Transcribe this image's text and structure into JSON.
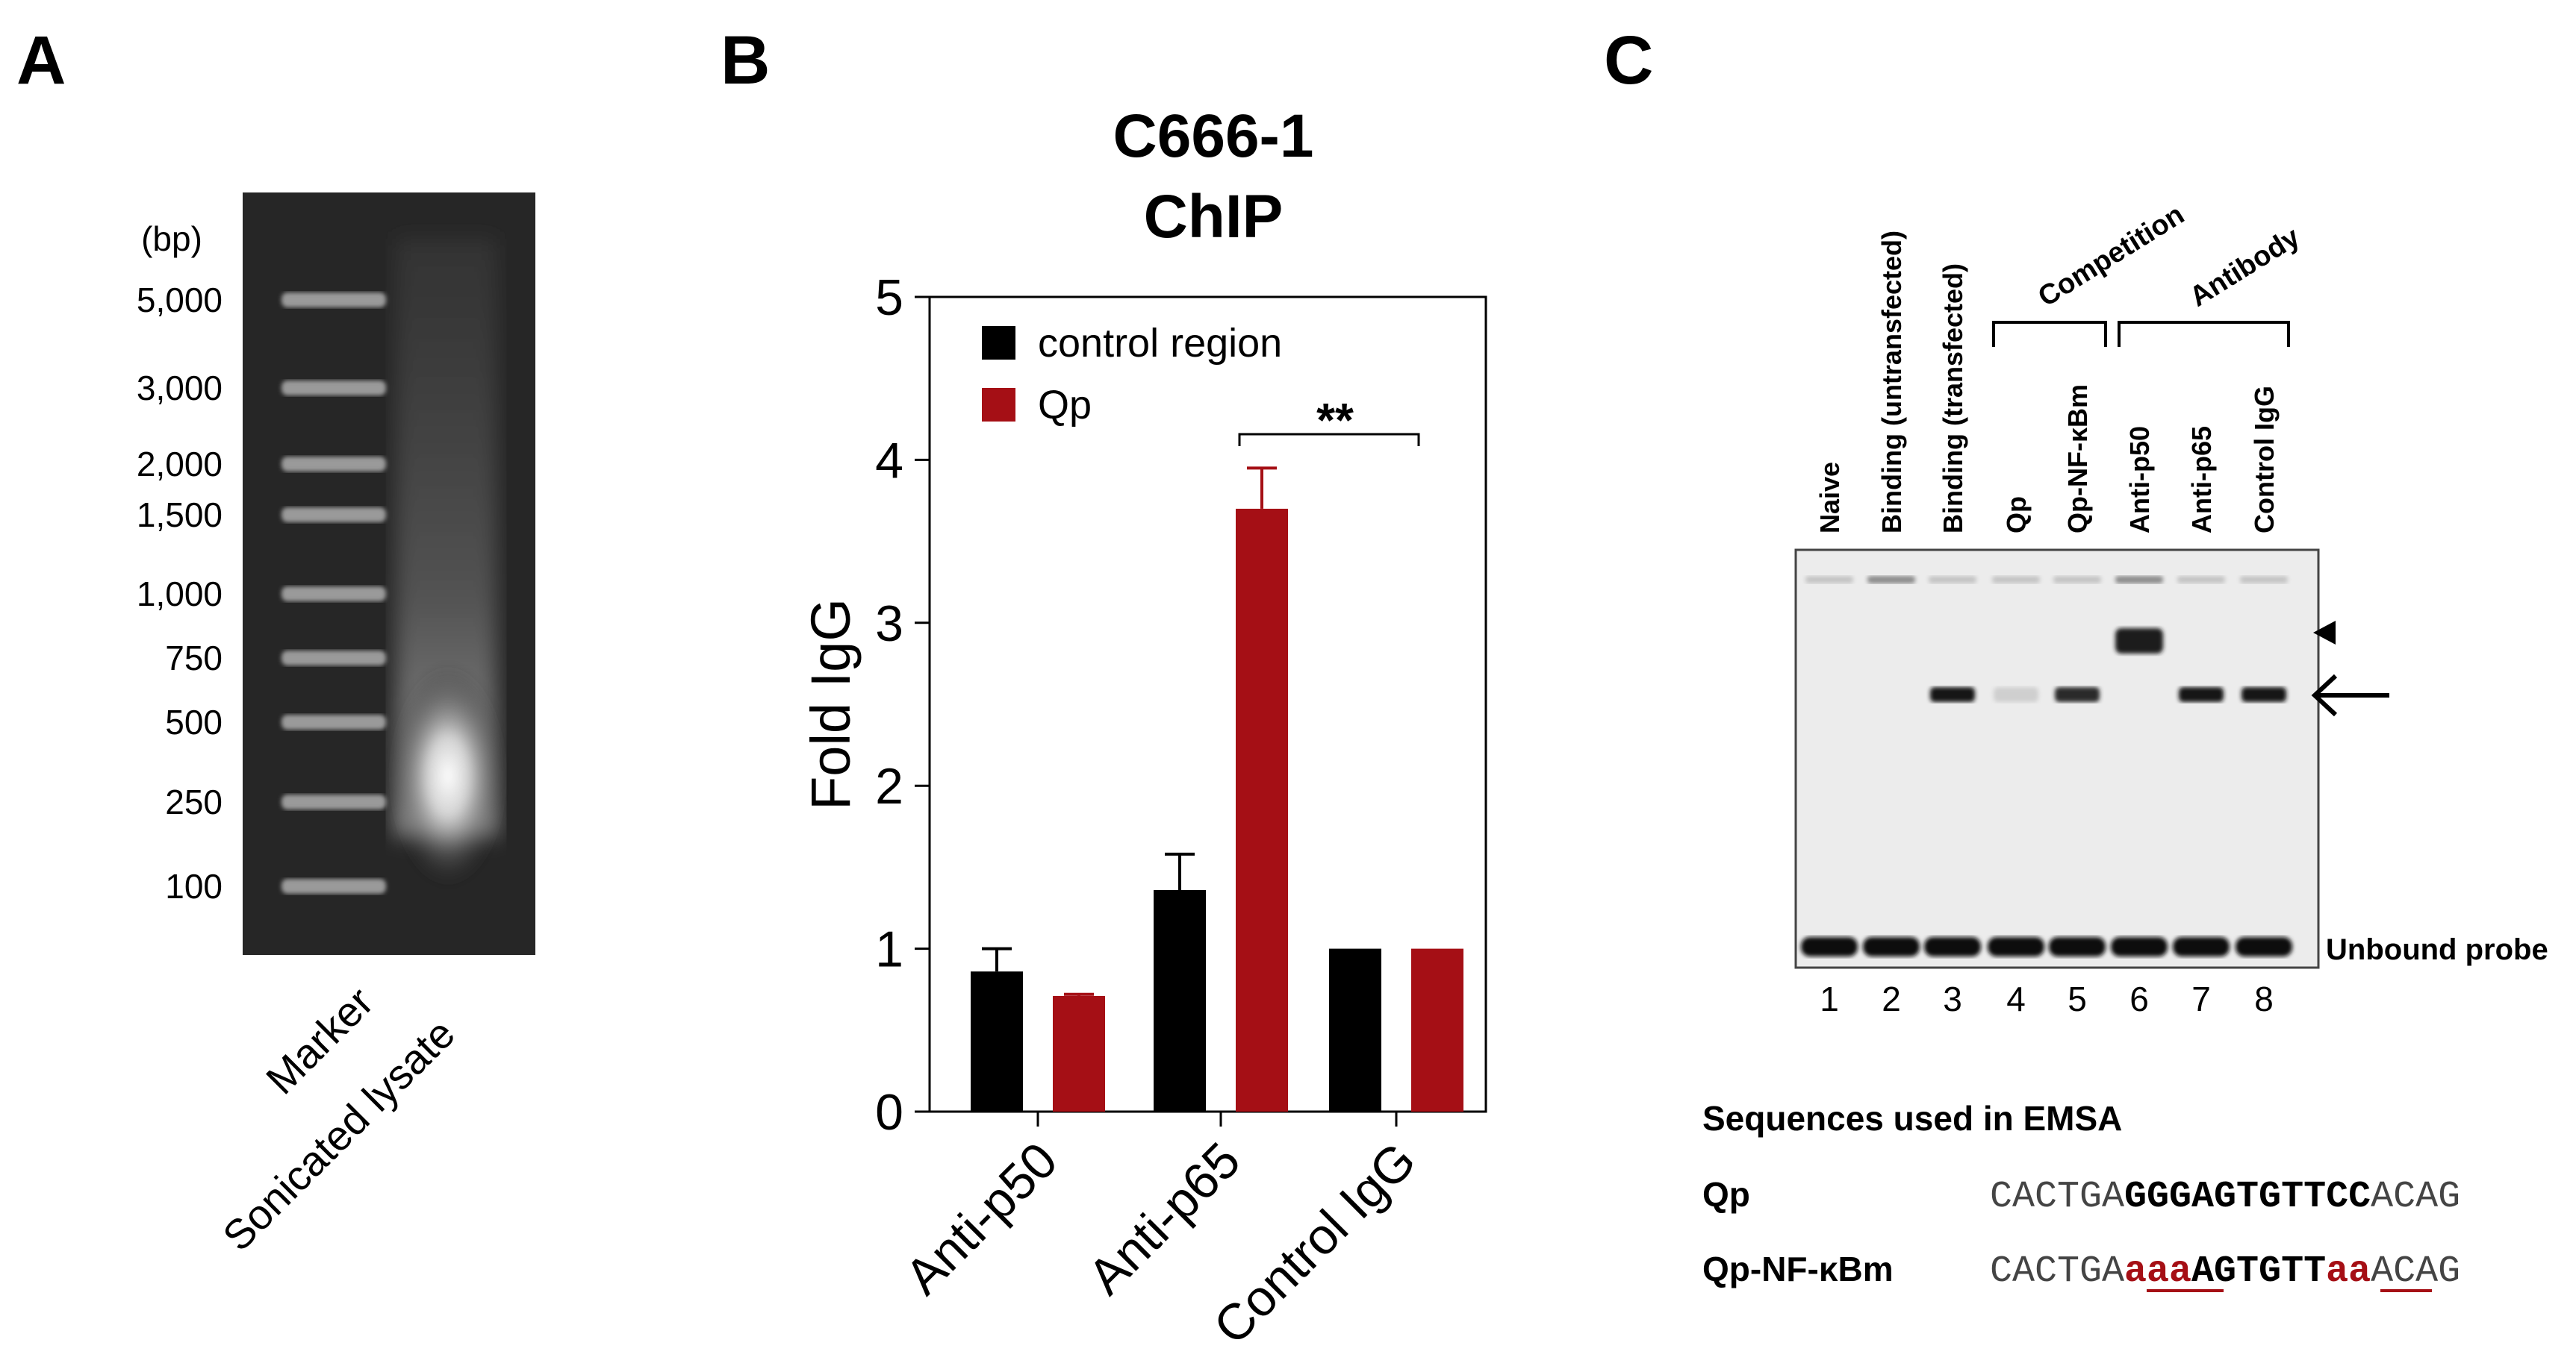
{
  "panels": {
    "a": "A",
    "b": "B",
    "c": "C"
  },
  "gel": {
    "unit_label": "(bp)",
    "marker_sizes": [
      "5,000",
      "3,000",
      "2,000",
      "1,500",
      "1,000",
      "750",
      "500",
      "250",
      "100"
    ],
    "lane_labels": [
      "Marker",
      "Sonicated lysate"
    ]
  },
  "chart_data": {
    "type": "bar",
    "title_line1": "C666-1",
    "title_line2": "ChIP",
    "categories": [
      "Anti-p50",
      "Anti-p65",
      "Control IgG"
    ],
    "series": [
      {
        "name": "control region",
        "values": [
          0.86,
          1.36,
          1.0
        ],
        "errors": [
          0.14,
          0.22,
          0
        ],
        "color": "#000000"
      },
      {
        "name": "Qp",
        "values": [
          0.71,
          3.7,
          1.0
        ],
        "errors": [
          0.01,
          0.25,
          0
        ],
        "color": "#a50f15"
      }
    ],
    "ylabel": "Fold IgG",
    "ylim": [
      0,
      5
    ],
    "yticks": [
      0,
      1,
      2,
      3,
      4,
      5
    ],
    "significance": {
      "label": "**",
      "from": "Anti-p65",
      "to": "Control IgG"
    },
    "legend_position": "top-left"
  },
  "emsa": {
    "lane_labels": [
      "Naive",
      "Binding (untransfected)",
      "Binding (transfected)",
      "Qp",
      "Qp-NF-κBm",
      "Anti-p50",
      "Anti-p65",
      "Control IgG"
    ],
    "lane_numbers": [
      "1",
      "2",
      "3",
      "4",
      "5",
      "6",
      "7",
      "8"
    ],
    "groups": [
      {
        "label": "Competition",
        "lanes": [
          4,
          5
        ]
      },
      {
        "label": "Antibody",
        "lanes": [
          6,
          8
        ]
      }
    ],
    "unbound_label": "Unbound probe",
    "sequences": {
      "title": "Sequences used in EMSA",
      "rows": [
        {
          "name": "Qp",
          "segments": [
            {
              "text": "CACTGA",
              "style": "plain"
            },
            {
              "text": "GGGAGTGTTCC",
              "style": "bold"
            },
            {
              "text": "ACAG",
              "style": "plain"
            }
          ]
        },
        {
          "name": "Qp-NF-κBm",
          "segments": [
            {
              "text": "CACTGA",
              "style": "plain"
            },
            {
              "text": "aaa",
              "style": "mutant"
            },
            {
              "text": "AGTGTT",
              "style": "bold"
            },
            {
              "text": "aa",
              "style": "mutant"
            },
            {
              "text": "ACAG",
              "style": "plain"
            }
          ]
        }
      ]
    }
  }
}
